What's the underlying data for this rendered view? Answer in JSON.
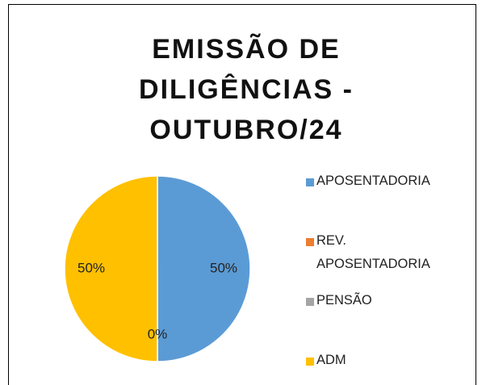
{
  "chart_data": {
    "type": "pie",
    "title": "EMISSÃO DE DILIGÊNCIAS - OUTUBRO/24",
    "categories": [
      "APOSENTADORIA",
      "REV. APOSENTADORIA",
      "PENSÃO",
      "ADM"
    ],
    "values": [
      50,
      0,
      0,
      50
    ],
    "value_labels": [
      "50%",
      "0%",
      null,
      "50%"
    ],
    "colors": [
      "#5b9bd5",
      "#ed7d31",
      "#a5a5a5",
      "#ffc000"
    ],
    "legend": "right"
  }
}
